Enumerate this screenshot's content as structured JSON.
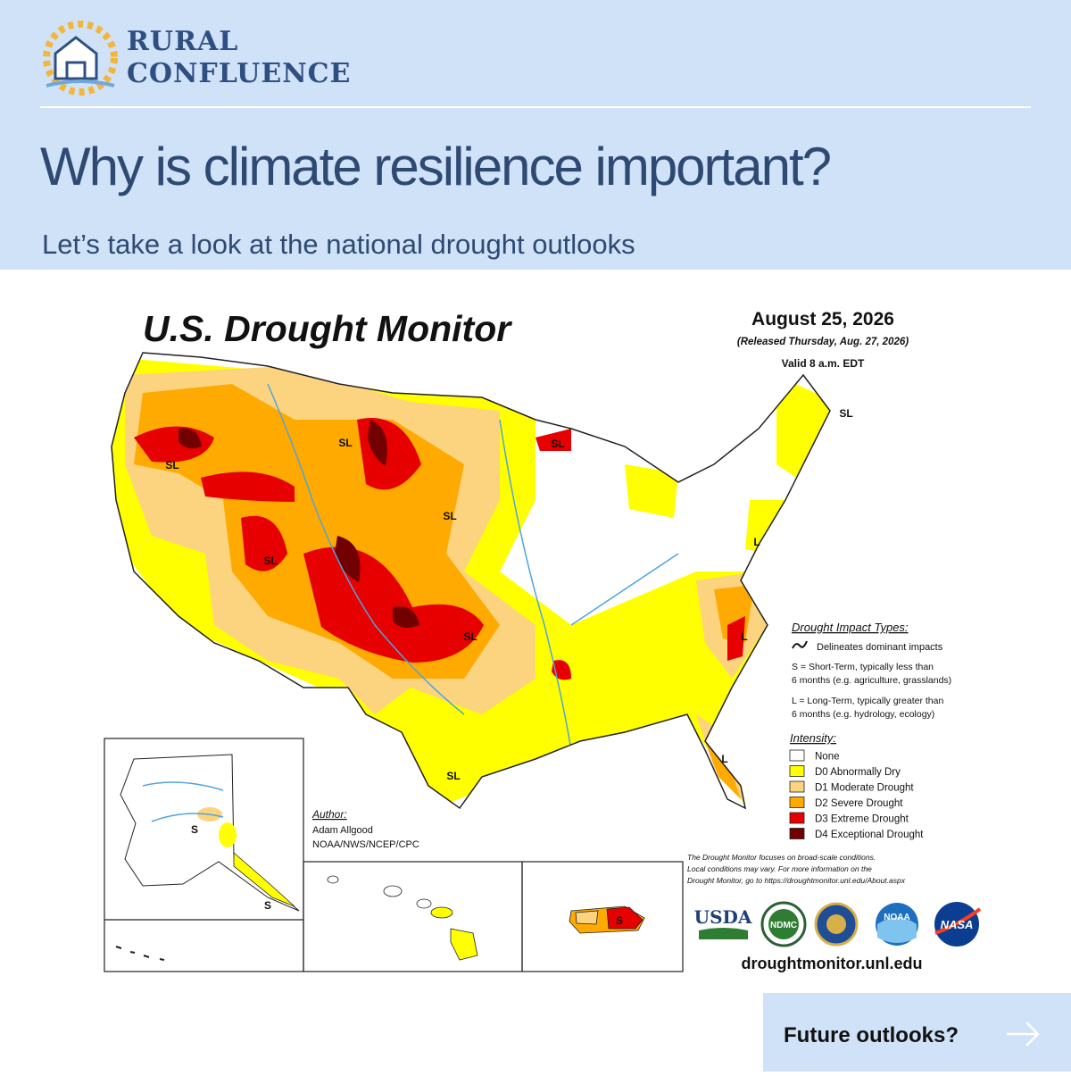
{
  "brand": {
    "line1": "RURAL",
    "line2": "CONFLUENCE"
  },
  "header": {
    "title": "Why is climate resilience important?",
    "subtitle": "Let’s take a look at the national drought outlooks"
  },
  "map": {
    "title": "U.S. Drought Monitor",
    "date": "August 25, 2026",
    "released": "(Released Thursday, Aug. 27, 2026)",
    "valid": "Valid 8 a.m. EDT",
    "impact_legend": {
      "title": "Drought Impact Types:",
      "delineates": "Delineates dominant impacts",
      "short_term": [
        "S = Short-Term, typically less than",
        "6 months (e.g. agriculture, grasslands)"
      ],
      "long_term": [
        "L = Long-Term, typically greater than",
        "6 months (e.g. hydrology, ecology)"
      ]
    },
    "intensity": {
      "title": "Intensity:",
      "levels": [
        {
          "label": "None",
          "color": "#ffffff"
        },
        {
          "label": "D0 Abnormally Dry",
          "color": "#ffff00"
        },
        {
          "label": "D1 Moderate Drought",
          "color": "#fcd37f"
        },
        {
          "label": "D2 Severe Drought",
          "color": "#ffaa00"
        },
        {
          "label": "D3 Extreme Drought",
          "color": "#e60000"
        },
        {
          "label": "D4 Exceptional Drought",
          "color": "#730000"
        }
      ]
    },
    "author": {
      "heading": "Author:",
      "name": "Adam Allgood",
      "org": "NOAA/NWS/NCEP/CPC"
    },
    "disclaimer": [
      "The Drought Monitor focuses on broad-scale conditions.",
      "Local conditions may vary. For more information on the",
      "Drought Monitor, go to https://droughtmonitor.unl.edu/About.aspx"
    ],
    "logos": [
      "USDA",
      "NDMC",
      "NOAA",
      "NASA"
    ],
    "url": "droughtmonitor.unl.edu",
    "region_labels": [
      "SL",
      "SL",
      "SL",
      "SL",
      "SL",
      "SL",
      "SL",
      "SL",
      "L",
      "L",
      "L",
      "S",
      "S",
      "S"
    ]
  },
  "button": {
    "label": "Future outlooks?"
  }
}
